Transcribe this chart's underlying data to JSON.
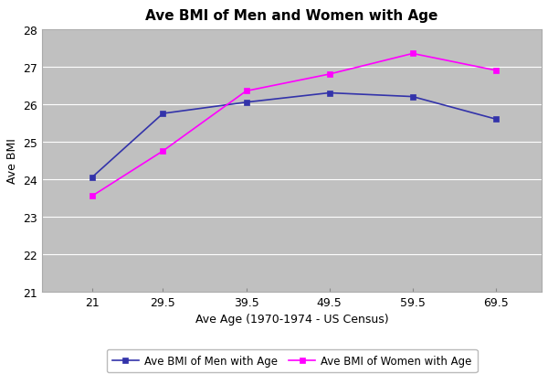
{
  "title": "Ave BMI of Men and Women with Age",
  "xlabel": "Ave Age (1970-1974 - US Census)",
  "ylabel": "Ave BMI",
  "x": [
    21,
    29.5,
    39.5,
    49.5,
    59.5,
    69.5
  ],
  "men_bmi": [
    24.05,
    25.75,
    26.05,
    26.3,
    26.2,
    25.6
  ],
  "women_bmi": [
    23.55,
    24.75,
    26.35,
    26.8,
    27.35,
    26.9
  ],
  "men_color": "#3333aa",
  "women_color": "#ff00ff",
  "men_label": "Ave BMI of Men with Age",
  "women_label": "Ave BMI of Women with Age",
  "ylim": [
    21,
    28
  ],
  "yticks": [
    21,
    22,
    23,
    24,
    25,
    26,
    27,
    28
  ],
  "plot_bg_color": "#c0c0c0",
  "fig_bg_color": "#ffffff",
  "grid_color": "#ffffff",
  "title_fontsize": 11,
  "axis_label_fontsize": 9,
  "tick_fontsize": 9,
  "legend_fontsize": 8.5,
  "marker_size": 4,
  "line_width": 1.2
}
